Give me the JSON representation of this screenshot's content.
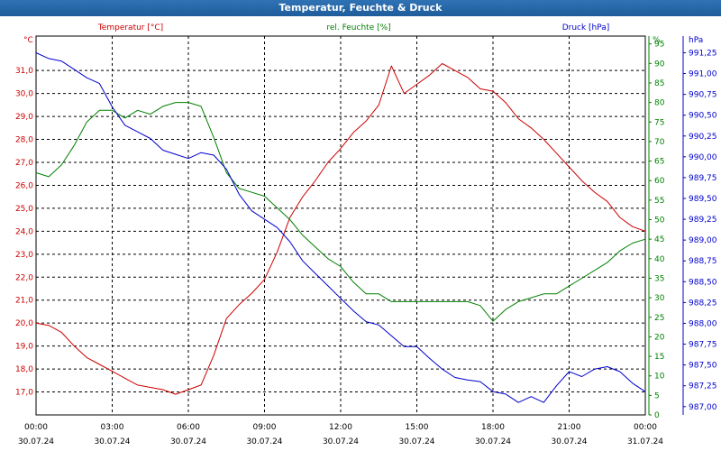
{
  "window": {
    "title": "Temperatur, Feuchte & Druck"
  },
  "chart_data": {
    "type": "line",
    "title": "Temperatur, Feuchte & Druck",
    "grid": true,
    "x_ticks": [
      {
        "time": "00:00",
        "date": "30.07.24"
      },
      {
        "time": "03:00",
        "date": "30.07.24"
      },
      {
        "time": "06:00",
        "date": "30.07.24"
      },
      {
        "time": "09:00",
        "date": "30.07.24"
      },
      {
        "time": "12:00",
        "date": "30.07.24"
      },
      {
        "time": "15:00",
        "date": "30.07.24"
      },
      {
        "time": "18:00",
        "date": "30.07.24"
      },
      {
        "time": "21:00",
        "date": "30.07.24"
      },
      {
        "time": "00:00",
        "date": "31.07.24"
      }
    ],
    "axes": {
      "temperature": {
        "unit": "°C",
        "range": [
          16.0,
          32.5
        ],
        "ticks": [
          "17,0",
          "18,0",
          "19,0",
          "20,0",
          "21,0",
          "22,0",
          "23,0",
          "24,0",
          "25,0",
          "26,0",
          "27,0",
          "28,0",
          "29,0",
          "30,0",
          "31,0"
        ],
        "color": "#cc0000"
      },
      "humidity": {
        "unit": "%",
        "range": [
          0,
          97
        ],
        "ticks": [
          "0",
          "5",
          "10",
          "15",
          "20",
          "25",
          "30",
          "35",
          "40",
          "45",
          "50",
          "55",
          "60",
          "65",
          "70",
          "75",
          "80",
          "85",
          "90",
          "95"
        ],
        "color": "#008000"
      },
      "pressure": {
        "unit": "hPa",
        "range": [
          986.9,
          991.45
        ],
        "ticks": [
          "987,00",
          "987,25",
          "987,50",
          "987,75",
          "988,00",
          "988,25",
          "988,50",
          "988,75",
          "989,00",
          "989,25",
          "989,50",
          "989,75",
          "990,00",
          "990,25",
          "990,50",
          "990,75",
          "991,00",
          "991,25"
        ],
        "color": "#0000cc"
      }
    },
    "series": [
      {
        "name": "Temperatur [°C]",
        "axis": "temperature",
        "color": "#cc0000",
        "x": [
          0,
          0.5,
          1,
          1.5,
          2,
          2.5,
          3,
          3.5,
          4,
          4.5,
          5,
          5.5,
          6,
          6.5,
          7,
          7.5,
          8,
          8.5,
          9,
          9.5,
          10,
          10.5,
          11,
          11.5,
          12,
          12.5,
          13,
          13.5,
          14,
          14.5,
          15,
          15.5,
          16,
          16.5,
          17,
          17.5,
          18,
          18.5,
          19,
          19.5,
          20,
          20.5,
          21,
          21.5,
          22,
          22.5,
          23,
          23.5,
          24
        ],
        "values": [
          20.0,
          19.9,
          19.6,
          19.0,
          18.5,
          18.2,
          17.9,
          17.6,
          17.3,
          17.2,
          17.1,
          16.9,
          17.1,
          17.3,
          18.6,
          20.2,
          20.8,
          21.3,
          21.9,
          23.1,
          24.6,
          25.5,
          26.2,
          27.0,
          27.6,
          28.3,
          28.8,
          29.5,
          31.2,
          30.0,
          30.4,
          30.8,
          31.3,
          31.0,
          30.7,
          30.2,
          30.1,
          29.6,
          28.9,
          28.5,
          28.0,
          27.4,
          26.8,
          26.2,
          25.7,
          25.3,
          24.6,
          24.2,
          24.0
        ]
      },
      {
        "name": "rel. Feuchte [%]",
        "axis": "humidity",
        "color": "#008000",
        "x": [
          0,
          0.5,
          1,
          1.5,
          2,
          2.5,
          3,
          3.5,
          4,
          4.5,
          5,
          5.5,
          6,
          6.5,
          7,
          7.5,
          8,
          8.5,
          9,
          9.5,
          10,
          10.5,
          11,
          11.5,
          12,
          12.5,
          13,
          13.5,
          14,
          14.5,
          15,
          15.5,
          16,
          16.5,
          17,
          17.5,
          18,
          18.5,
          19,
          19.5,
          20,
          20.5,
          21,
          21.5,
          22,
          22.5,
          23,
          23.5,
          24
        ],
        "values": [
          62,
          61,
          64,
          69,
          75,
          78,
          78,
          76,
          78,
          77,
          79,
          80,
          80,
          79,
          71,
          62,
          58,
          57,
          56,
          53,
          50,
          46,
          43,
          40,
          38,
          34,
          31,
          31,
          29,
          29,
          29,
          29,
          29,
          29,
          29,
          28,
          24,
          27,
          29,
          30,
          31,
          31,
          33,
          35,
          37,
          39,
          42,
          44,
          45
        ]
      },
      {
        "name": "Druck [hPa]",
        "axis": "pressure",
        "color": "#0000cc",
        "x": [
          0,
          0.5,
          1,
          1.5,
          2,
          2.5,
          3,
          3.5,
          4,
          4.5,
          5,
          5.5,
          6,
          6.5,
          7,
          7.5,
          8,
          8.5,
          9,
          9.5,
          10,
          10.5,
          11,
          11.5,
          12,
          12.5,
          13,
          13.5,
          14,
          14.5,
          15,
          15.5,
          16,
          16.5,
          17,
          17.5,
          18,
          18.5,
          19,
          19.5,
          20,
          20.5,
          21,
          21.5,
          22,
          22.5,
          23,
          23.5,
          24
        ],
        "values": [
          991.25,
          991.18,
          991.15,
          991.05,
          990.95,
          990.88,
          990.6,
          990.38,
          990.3,
          990.22,
          990.08,
          990.03,
          989.98,
          990.05,
          990.02,
          989.85,
          989.55,
          989.35,
          989.25,
          989.15,
          988.98,
          988.75,
          988.6,
          988.45,
          988.3,
          988.15,
          988.02,
          987.98,
          987.85,
          987.72,
          987.72,
          987.58,
          987.45,
          987.35,
          987.32,
          987.3,
          987.18,
          987.15,
          987.05,
          987.12,
          987.05,
          987.25,
          987.42,
          987.36,
          987.45,
          987.48,
          987.42,
          987.28,
          987.18
        ]
      }
    ]
  }
}
